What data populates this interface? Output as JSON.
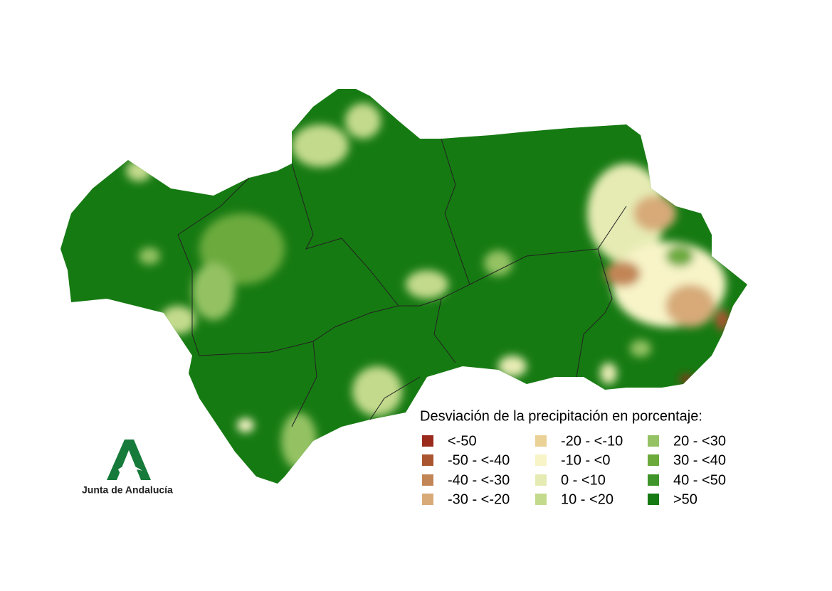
{
  "map": {
    "legend": {
      "title": "Desviación de la precipitación en porcentaje:",
      "items": [
        {
          "label": "<-50",
          "color": "#9a2a1c"
        },
        {
          "label": "-50 - <-40",
          "color": "#aa5530"
        },
        {
          "label": "-40 - <-30",
          "color": "#c28656"
        },
        {
          "label": "-30 - <-20",
          "color": "#d7aa78"
        },
        {
          "label": "-20 - <-10",
          "color": "#ead196"
        },
        {
          "label": "-10 - <0",
          "color": "#f8f4c8"
        },
        {
          "label": "0 - <10",
          "color": "#e6ebb4"
        },
        {
          "label": "10 - <20",
          "color": "#c3da8c"
        },
        {
          "label": "20 - <30",
          "color": "#94c264"
        },
        {
          "label": "30 - <40",
          "color": "#6caa3c"
        },
        {
          "label": "40 - <50",
          "color": "#3f952a"
        },
        {
          "label": ">50",
          "color": "#167a12"
        }
      ]
    },
    "logo": {
      "text": "Junta de Andalucía"
    }
  }
}
